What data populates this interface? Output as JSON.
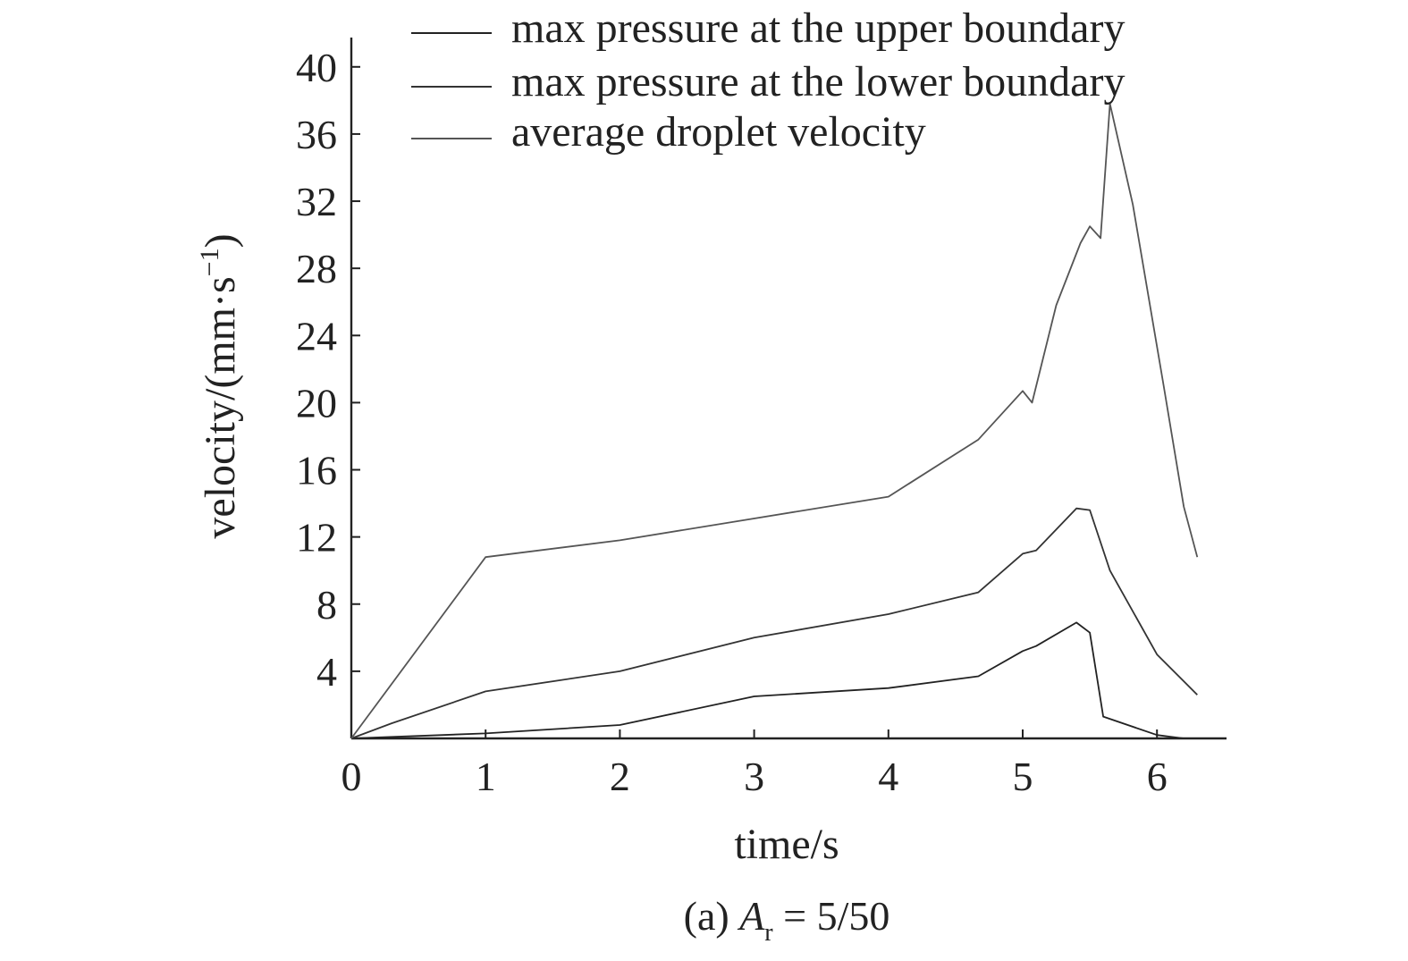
{
  "chart_data": {
    "type": "line",
    "xlabel": "time/s",
    "ylabel": "velocity/(mm·s",
    "ylabel_sup": "−1",
    "ylabel_close": ")",
    "xlim": [
      0,
      6.5
    ],
    "ylim": [
      0,
      42
    ],
    "xticks": [
      0,
      1,
      2,
      3,
      4,
      5,
      6
    ],
    "yticks": [
      4,
      8,
      12,
      16,
      20,
      24,
      28,
      32,
      36,
      40
    ],
    "grid": false,
    "legend_position": "top-right",
    "caption": {
      "prefix": "(a) ",
      "var": "A",
      "sub": "r",
      "rest": " = 5/50"
    },
    "series": [
      {
        "name": "max pressure at the upper boundary",
        "color": "#222222",
        "x": [
          0,
          1,
          2,
          3,
          4,
          4.67,
          5,
          5.1,
          5.4,
          5.5,
          5.6,
          6,
          6.1,
          6.2
        ],
        "y": [
          0,
          0.3,
          0.8,
          2.5,
          3.0,
          3.7,
          5.2,
          5.5,
          6.9,
          6.3,
          1.3,
          0.2,
          0.1,
          0
        ]
      },
      {
        "name": "max pressure at the lower boundary",
        "color": "#333333",
        "x": [
          0,
          0.3,
          1,
          2,
          3,
          4,
          4.67,
          5,
          5.1,
          5.4,
          5.5,
          5.65,
          6,
          6.3
        ],
        "y": [
          0,
          0.9,
          2.8,
          4.0,
          6.0,
          7.4,
          8.7,
          11.0,
          11.2,
          13.7,
          13.6,
          10.0,
          5.0,
          2.6
        ]
      },
      {
        "name": "average droplet velocity",
        "color": "#555555",
        "x": [
          0,
          1,
          2,
          3,
          4,
          4.67,
          5,
          5.07,
          5.25,
          5.43,
          5.5,
          5.58,
          5.65,
          5.82,
          6.05,
          6.2,
          6.3
        ],
        "y": [
          0,
          10.8,
          11.8,
          13.1,
          14.4,
          17.8,
          20.7,
          20.0,
          25.8,
          29.5,
          30.5,
          29.8,
          37.8,
          31.8,
          21.0,
          13.8,
          10.8
        ]
      }
    ]
  }
}
